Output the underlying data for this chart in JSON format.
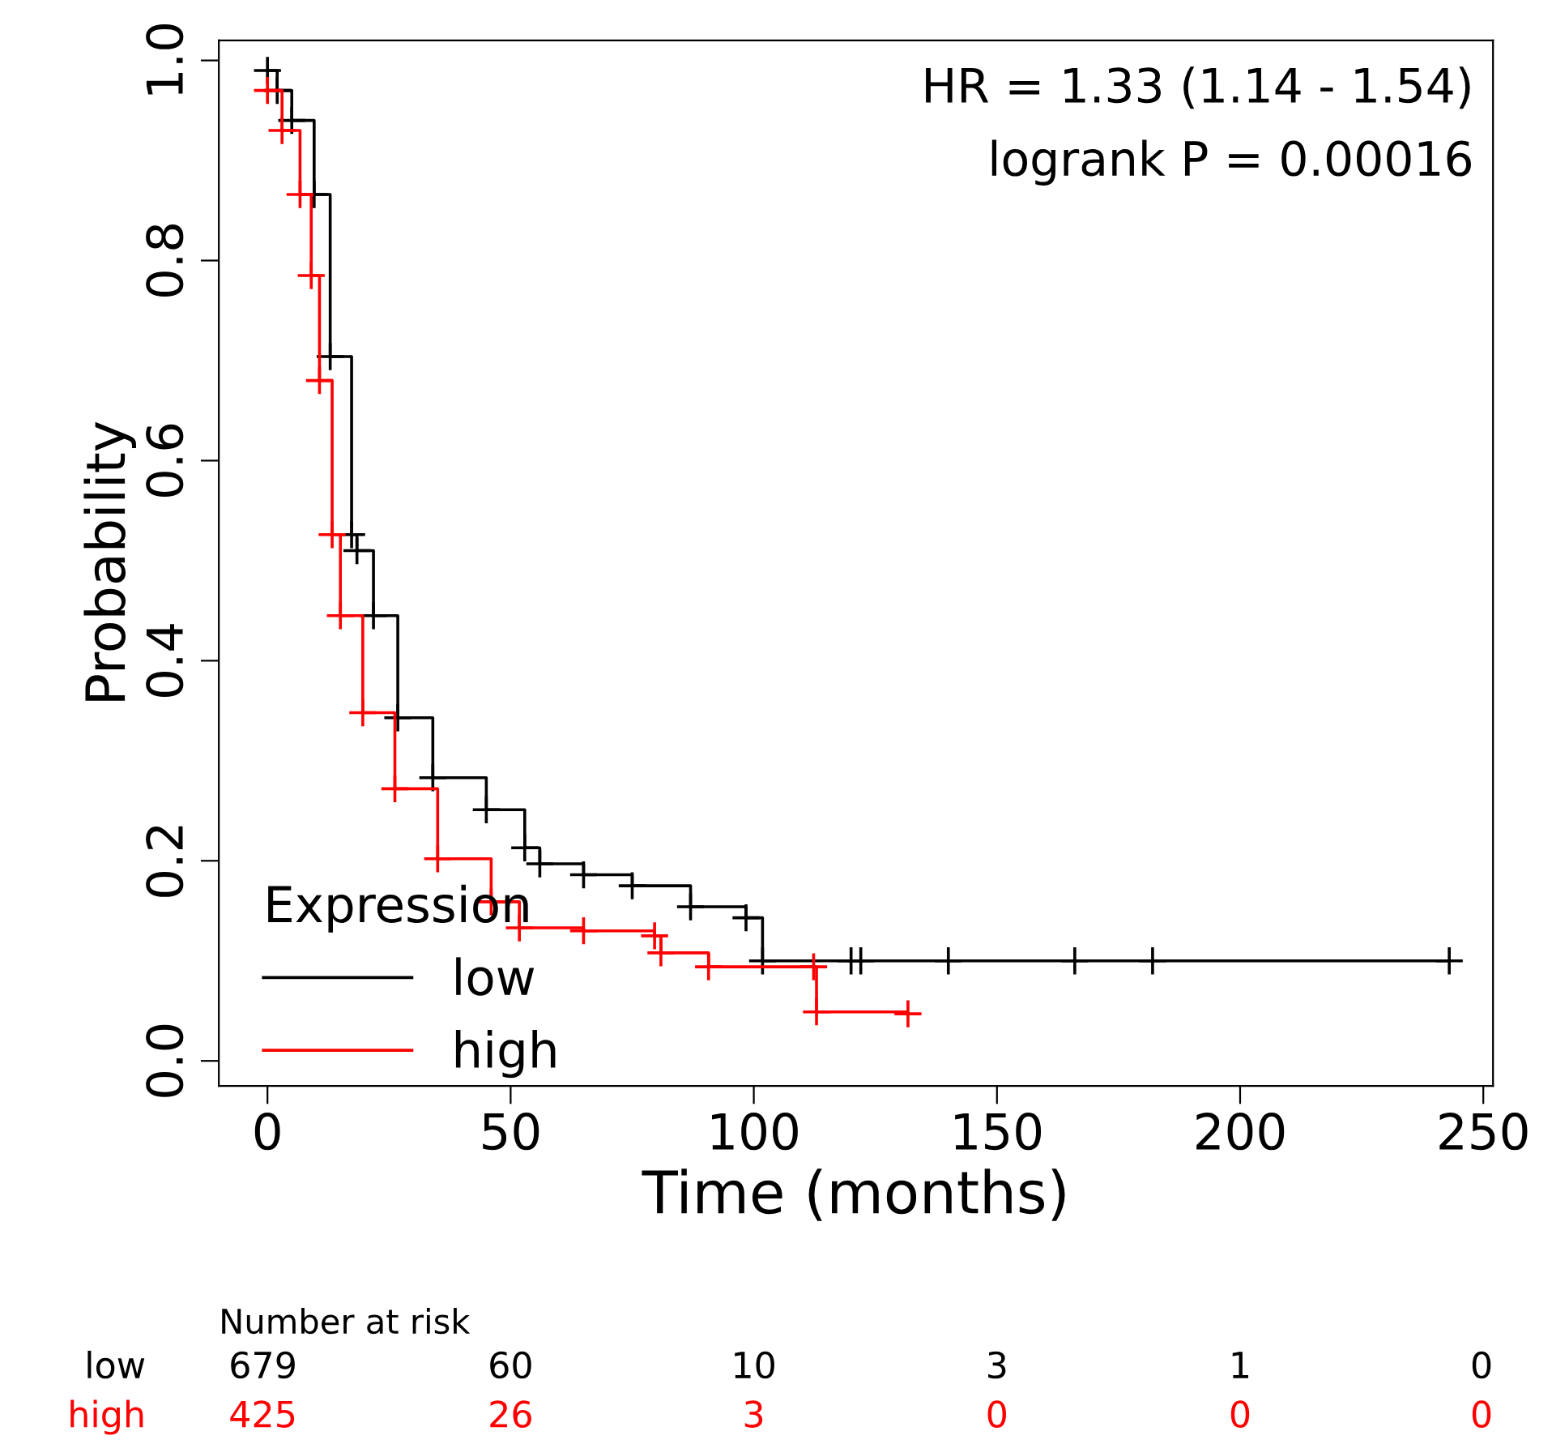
{
  "chart_data": {
    "type": "step",
    "xlabel": "Time (months)",
    "ylabel": "Probability",
    "legend_title": "Expression",
    "legend": "bottom left",
    "marker": "cross",
    "grid": false,
    "xlim": [
      -10,
      252
    ],
    "xticks": [
      0,
      50,
      100,
      150,
      200,
      250
    ],
    "ylim": [
      -0.025,
      1.02
    ],
    "yticks": [
      {
        "value": 0,
        "label": "0.0"
      },
      0.2,
      0.4,
      0.6,
      0.8,
      {
        "value": 1,
        "label": "1.0"
      }
    ],
    "series": [
      {
        "name": "low",
        "color": "#000000",
        "x": [
          0,
          2,
          5,
          9.6,
          12.9,
          17.3,
          18.4,
          21.8,
          26.8,
          34,
          45,
          52.9,
          56,
          65,
          75,
          87,
          98.4,
          101.8,
          120,
          122,
          140,
          166,
          182,
          243
        ],
        "values": [
          0.99,
          0.97,
          0.94,
          0.866,
          0.704,
          0.526,
          0.51,
          0.445,
          0.343,
          0.283,
          0.251,
          0.213,
          0.197,
          0.186,
          0.175,
          0.154,
          0.143,
          0.1,
          0.1,
          0.1,
          0.1,
          0.1,
          0.1,
          0.1
        ]
      },
      {
        "name": "high",
        "color": "#ff0000",
        "x": [
          0,
          3,
          6.7,
          9,
          10.7,
          13.3,
          15,
          19.6,
          26.2,
          35,
          46,
          51.8,
          65,
          79.6,
          80.9,
          90.7,
          112.3,
          112.9,
          131.7
        ],
        "values": [
          0.97,
          0.93,
          0.866,
          0.785,
          0.68,
          0.526,
          0.445,
          0.348,
          0.272,
          0.202,
          0.159,
          0.133,
          0.13,
          0.125,
          0.108,
          0.094,
          0.094,
          0.049,
          0.047
        ]
      }
    ],
    "annotations": [
      "HR = 1.33 (1.14 - 1.54)",
      "logrank P = 0.00016",
      "Number at risk",
      "low",
      "679",
      "60",
      "10",
      "3",
      "1",
      "0",
      "high",
      "425",
      "26",
      "3",
      "0",
      "0",
      "0"
    ]
  }
}
